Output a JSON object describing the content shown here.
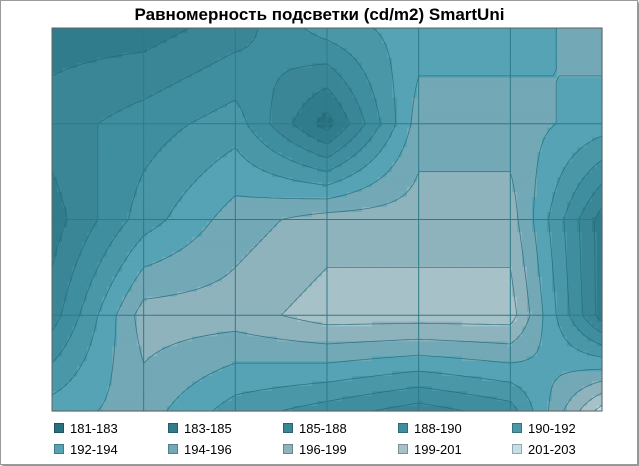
{
  "chart_data": {
    "type": "heatmap",
    "subtype": "contour",
    "title": "Равномерность подсветки (cd/m2) SmartUni",
    "xlabel": "",
    "ylabel": "",
    "grid": true,
    "grid_columns": 6,
    "grid_rows": 4,
    "legend_position": "bottom",
    "levels": [
      {
        "label": "181-183",
        "color": "#2a6f7e"
      },
      {
        "label": "183-185",
        "color": "#317c8c"
      },
      {
        "label": "185-188",
        "color": "#3a8696"
      },
      {
        "label": "188-190",
        "color": "#3f8ea0"
      },
      {
        "label": "190-192",
        "color": "#4a97a8"
      },
      {
        "label": "192-194",
        "color": "#55a3b5"
      },
      {
        "label": "194-196",
        "color": "#73a8b6"
      },
      {
        "label": "196-199",
        "color": "#8fb3bd"
      },
      {
        "label": "199-201",
        "color": "#a6c1c8"
      },
      {
        "label": "201-203",
        "color": "#c4dfe6"
      }
    ],
    "z": [
      [
        1,
        1,
        2,
        4,
        5,
        5,
        6
      ],
      [
        2,
        3,
        4,
        0,
        6,
        6,
        5
      ],
      [
        1,
        4,
        6,
        7,
        7,
        7,
        1
      ],
      [
        2,
        7,
        7,
        8,
        8,
        8,
        1
      ],
      [
        5,
        6,
        4,
        3,
        2,
        3,
        9
      ]
    ]
  }
}
